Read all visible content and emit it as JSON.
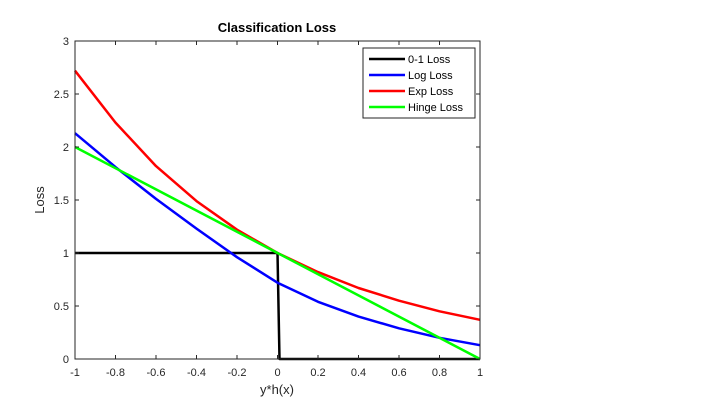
{
  "chart_data": {
    "type": "line",
    "title": "Classification Loss",
    "xlabel": "y*h(x)",
    "ylabel": "Loss",
    "xlim": [
      -1,
      1
    ],
    "ylim": [
      0,
      3
    ],
    "x_ticks": [
      "-1",
      "-0.8",
      "-0.6",
      "-0.4",
      "-0.2",
      "0",
      "0.2",
      "0.4",
      "0.6",
      "0.8",
      "1"
    ],
    "y_ticks": [
      "0",
      "0.5",
      "1",
      "1.5",
      "2",
      "2.5",
      "3"
    ],
    "grid": false,
    "legend_position": "top-right",
    "series": [
      {
        "name": "0-1 Loss",
        "color": "#000000",
        "x": [
          -1,
          0,
          0.01,
          1
        ],
        "y": [
          1,
          1,
          0,
          0
        ]
      },
      {
        "name": "Log Loss",
        "color": "#0000ff",
        "x": [
          -1,
          -0.8,
          -0.6,
          -0.4,
          -0.2,
          0,
          0.2,
          0.4,
          0.6,
          0.8,
          1
        ],
        "y": [
          2.13,
          1.81,
          1.51,
          1.23,
          0.96,
          0.72,
          0.54,
          0.4,
          0.29,
          0.2,
          0.13
        ]
      },
      {
        "name": "Exp Loss",
        "color": "#ff0000",
        "x": [
          -1,
          -0.8,
          -0.6,
          -0.4,
          -0.2,
          0,
          0.2,
          0.4,
          0.6,
          0.8,
          1
        ],
        "y": [
          2.72,
          2.23,
          1.82,
          1.49,
          1.22,
          1.0,
          0.82,
          0.67,
          0.55,
          0.45,
          0.37
        ]
      },
      {
        "name": "Hinge Loss",
        "color": "#00ff00",
        "x": [
          -1,
          1
        ],
        "y": [
          2,
          0
        ]
      }
    ]
  }
}
